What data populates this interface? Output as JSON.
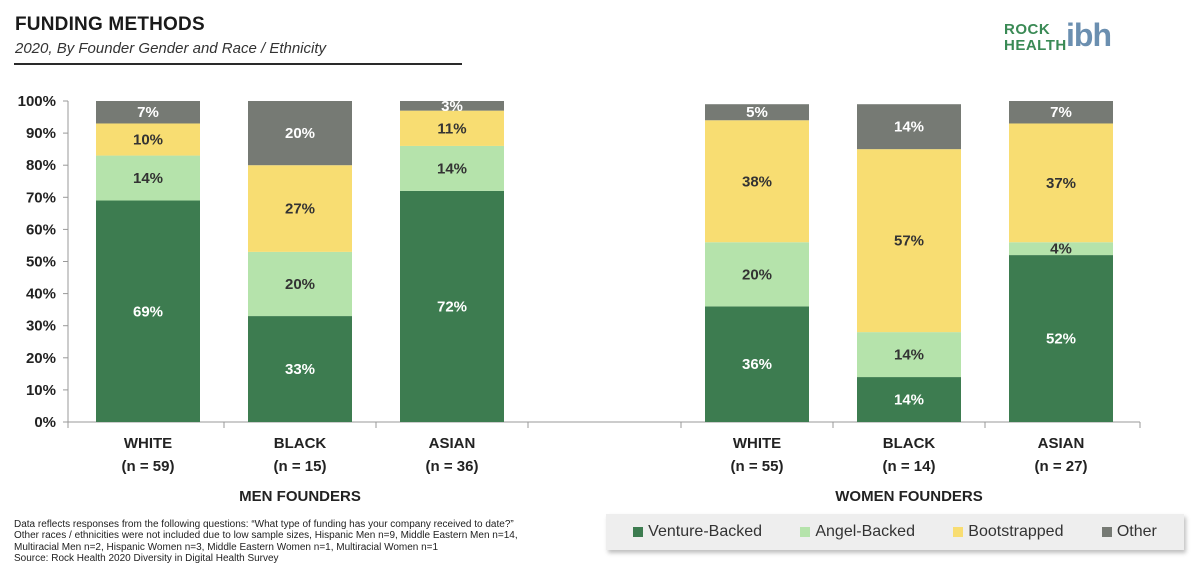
{
  "header": {
    "title": "FUNDING METHODS",
    "subtitle": "2020, By Founder Gender and Race / Ethnicity"
  },
  "logo": {
    "line1": "ROCK",
    "line2": "HEALTH",
    "mark": "ibh"
  },
  "chart_data": {
    "type": "bar",
    "stacked": true,
    "ylim": [
      0,
      100
    ],
    "yticks": [
      "0%",
      "10%",
      "20%",
      "30%",
      "40%",
      "50%",
      "60%",
      "70%",
      "80%",
      "90%",
      "100%"
    ],
    "grid": false,
    "groups": [
      {
        "name": "MEN FOUNDERS",
        "categories": [
          {
            "label": "WHITE",
            "n": "(n = 59)"
          },
          {
            "label": "BLACK",
            "n": "(n = 15)"
          },
          {
            "label": "ASIAN",
            "n": "(n = 36)"
          }
        ]
      },
      {
        "name": "WOMEN FOUNDERS",
        "categories": [
          {
            "label": "WHITE",
            "n": "(n = 55)"
          },
          {
            "label": "BLACK",
            "n": "(n = 14)"
          },
          {
            "label": "ASIAN",
            "n": "(n = 27)"
          }
        ]
      }
    ],
    "series": [
      {
        "name": "Venture-Backed",
        "color": "#3d7c50",
        "label_color": "#ffffff",
        "values": [
          69,
          33,
          72,
          36,
          14,
          52
        ]
      },
      {
        "name": "Angel-Backed",
        "color": "#b5e3ab",
        "label_color": "#333333",
        "values": [
          14,
          20,
          14,
          20,
          14,
          4
        ]
      },
      {
        "name": "Bootstrapped",
        "color": "#f8dd72",
        "label_color": "#333333",
        "values": [
          10,
          27,
          11,
          38,
          57,
          37
        ]
      },
      {
        "name": "Other",
        "color": "#767a74",
        "label_color": "#ffffff",
        "values": [
          7,
          20,
          3,
          5,
          14,
          7
        ]
      }
    ],
    "legend_position": "bottom-right"
  },
  "footnote": {
    "line1": "Data reflects responses from the following questions: “What type of funding has your company received to date?”",
    "line2": "Other races / ethnicities  were not included due to low sample sizes, Hispanic Men n=9, Middle Eastern Men n=14,",
    "line3": "Multiracial Men n=2, Hispanic Women n=3, Middle Eastern Women n=1, Multiracial Women n=1",
    "line4": "Source: Rock Health 2020 Diversity in Digital Health Survey"
  }
}
